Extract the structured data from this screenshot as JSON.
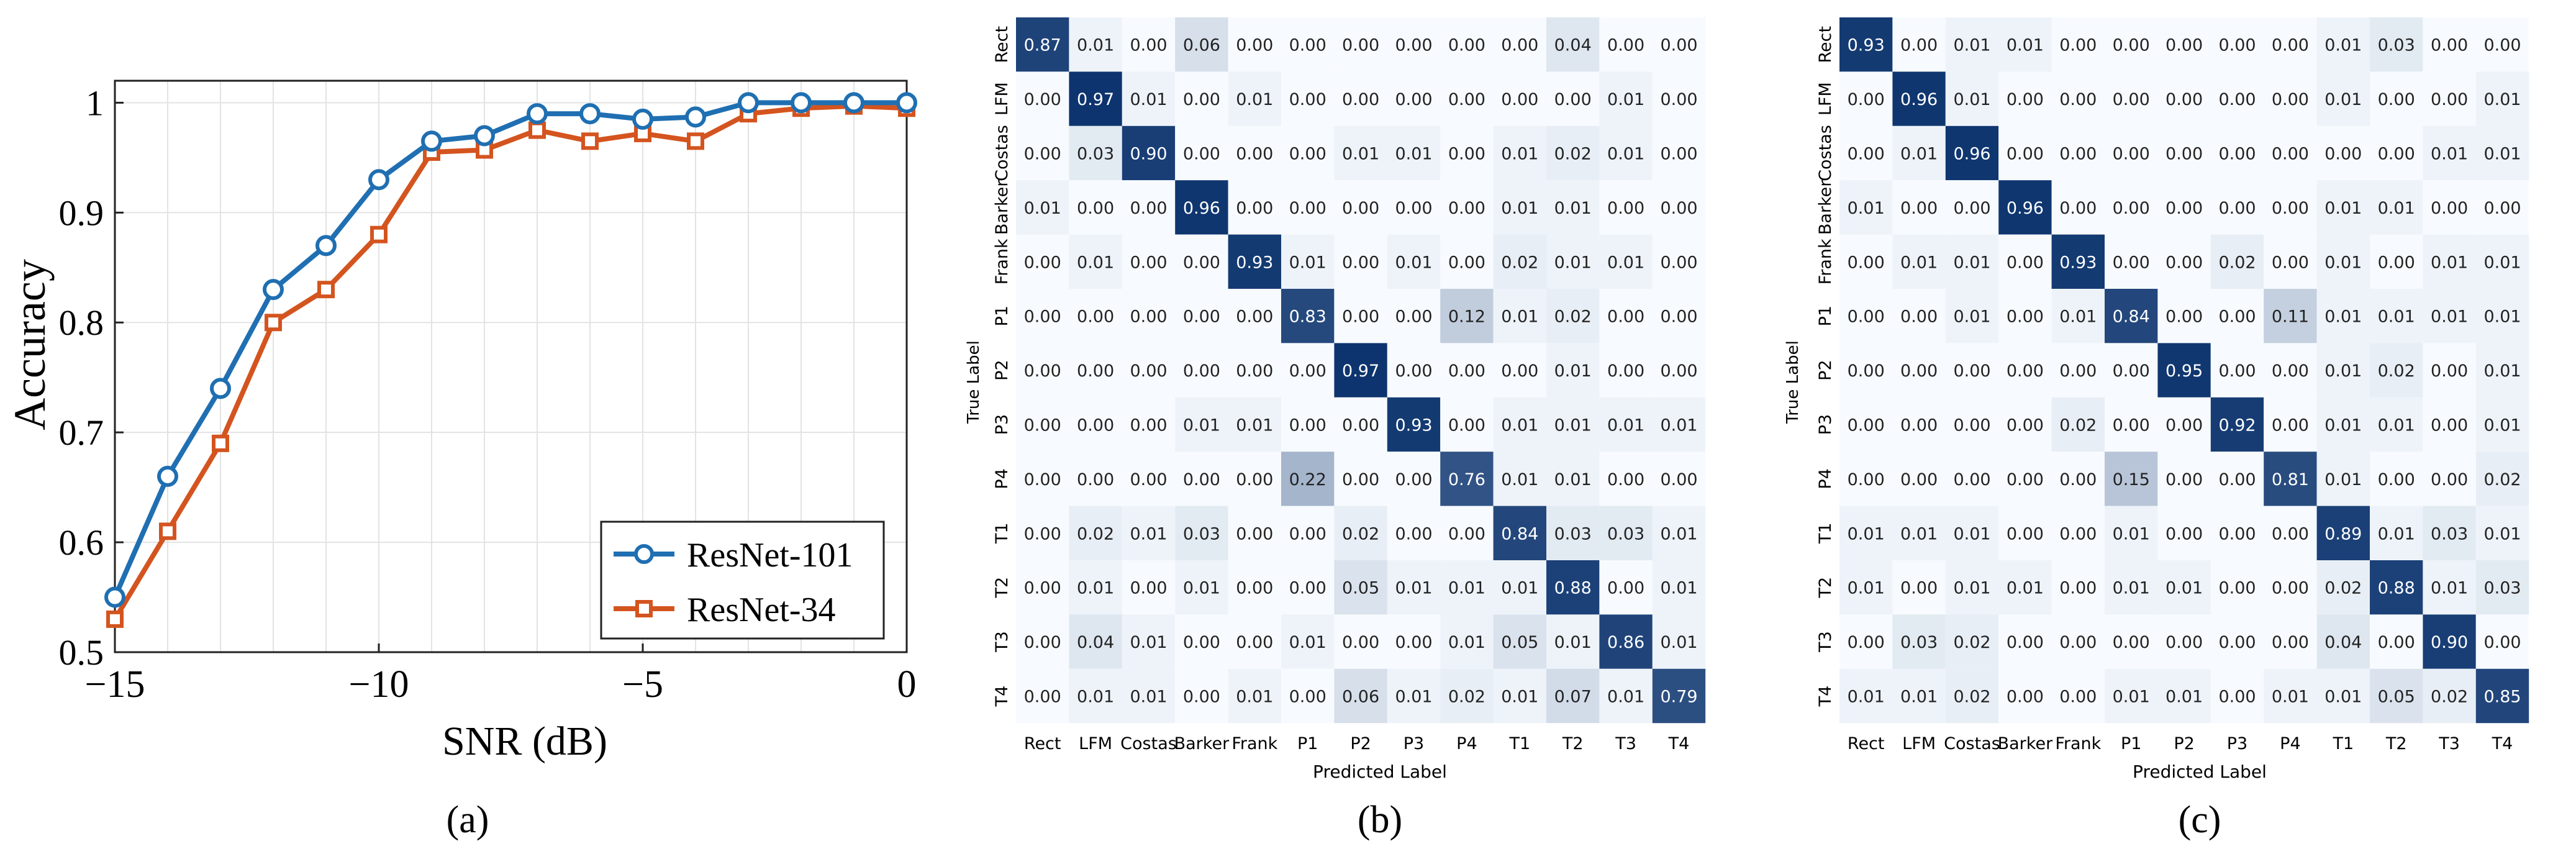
{
  "chart_data": [
    {
      "type": "line",
      "panel_label": "(a)",
      "xlabel": "SNR (dB)",
      "ylabel": "Accuracy",
      "xlim": [
        -15,
        0
      ],
      "ylim": [
        0.5,
        1.02
      ],
      "xticks": [
        -15,
        -10,
        -5,
        0
      ],
      "xtick_labels": [
        "−15",
        "−10",
        "−5",
        "0"
      ],
      "yticks": [
        0.5,
        0.6,
        0.7,
        0.8,
        0.9,
        1.0
      ],
      "ytick_labels": [
        "0.5",
        "0.6",
        "0.7",
        "0.8",
        "0.9",
        "1"
      ],
      "grid": true,
      "legend_position": "bottom-right",
      "x": [
        -15,
        -14,
        -13,
        -12,
        -11,
        -10,
        -9,
        -8,
        -7,
        -6,
        -5,
        -4,
        -3,
        -2,
        -1,
        0
      ],
      "series": [
        {
          "name": "ResNet-101",
          "color": "#1f6fb2",
          "marker": "circle",
          "values": [
            0.55,
            0.66,
            0.74,
            0.83,
            0.87,
            0.93,
            0.965,
            0.97,
            0.99,
            0.99,
            0.985,
            0.987,
            1.0,
            1.0,
            1.0,
            1.0
          ]
        },
        {
          "name": "ResNet-34",
          "color": "#d4541f",
          "marker": "square",
          "values": [
            0.53,
            0.61,
            0.69,
            0.8,
            0.83,
            0.88,
            0.955,
            0.957,
            0.975,
            0.965,
            0.972,
            0.965,
            0.99,
            0.995,
            0.997,
            0.995
          ]
        }
      ]
    },
    {
      "type": "heatmap",
      "panel_label": "(b)",
      "xlabel": "Predicted Label",
      "ylabel": "True Label",
      "labels": [
        "Rect",
        "LFM",
        "Costas",
        "Barker",
        "Frank",
        "P1",
        "P2",
        "P3",
        "P4",
        "T1",
        "T2",
        "T3",
        "T4"
      ],
      "matrix": [
        [
          0.87,
          0.01,
          0.0,
          0.06,
          0.0,
          0.0,
          0.0,
          0.0,
          0.0,
          0.0,
          0.04,
          0.0,
          0.0
        ],
        [
          0.0,
          0.97,
          0.01,
          0.0,
          0.01,
          0.0,
          0.0,
          0.0,
          0.0,
          0.0,
          0.0,
          0.01,
          0.0
        ],
        [
          0.0,
          0.03,
          0.9,
          0.0,
          0.0,
          0.0,
          0.01,
          0.01,
          0.0,
          0.01,
          0.02,
          0.01,
          0.0
        ],
        [
          0.01,
          0.0,
          0.0,
          0.96,
          0.0,
          0.0,
          0.0,
          0.0,
          0.0,
          0.01,
          0.01,
          0.0,
          0.0
        ],
        [
          0.0,
          0.01,
          0.0,
          0.0,
          0.93,
          0.01,
          0.0,
          0.01,
          0.0,
          0.02,
          0.01,
          0.01,
          0.0
        ],
        [
          0.0,
          0.0,
          0.0,
          0.0,
          0.0,
          0.83,
          0.0,
          0.0,
          0.12,
          0.01,
          0.02,
          0.0,
          0.0
        ],
        [
          0.0,
          0.0,
          0.0,
          0.0,
          0.0,
          0.0,
          0.97,
          0.0,
          0.0,
          0.0,
          0.01,
          0.0,
          0.0
        ],
        [
          0.0,
          0.0,
          0.0,
          0.01,
          0.01,
          0.0,
          0.0,
          0.93,
          0.0,
          0.01,
          0.01,
          0.01,
          0.01
        ],
        [
          0.0,
          0.0,
          0.0,
          0.0,
          0.0,
          0.22,
          0.0,
          0.0,
          0.76,
          0.01,
          0.01,
          0.0,
          0.0
        ],
        [
          0.0,
          0.02,
          0.01,
          0.03,
          0.0,
          0.0,
          0.02,
          0.0,
          0.0,
          0.84,
          0.03,
          0.03,
          0.01
        ],
        [
          0.0,
          0.01,
          0.0,
          0.01,
          0.0,
          0.0,
          0.05,
          0.01,
          0.01,
          0.01,
          0.88,
          0.0,
          0.01
        ],
        [
          0.0,
          0.04,
          0.01,
          0.0,
          0.0,
          0.01,
          0.0,
          0.0,
          0.01,
          0.05,
          0.01,
          0.86,
          0.01
        ],
        [
          0.0,
          0.01,
          0.01,
          0.0,
          0.01,
          0.0,
          0.06,
          0.01,
          0.02,
          0.01,
          0.07,
          0.01,
          0.79
        ]
      ]
    },
    {
      "type": "heatmap",
      "panel_label": "(c)",
      "xlabel": "Predicted Label",
      "ylabel": "True Label",
      "labels": [
        "Rect",
        "LFM",
        "Costas",
        "Barker",
        "Frank",
        "P1",
        "P2",
        "P3",
        "P4",
        "T1",
        "T2",
        "T3",
        "T4"
      ],
      "matrix": [
        [
          0.93,
          0.0,
          0.01,
          0.01,
          0.0,
          0.0,
          0.0,
          0.0,
          0.0,
          0.01,
          0.03,
          0.0,
          0.0
        ],
        [
          0.0,
          0.96,
          0.01,
          0.0,
          0.0,
          0.0,
          0.0,
          0.0,
          0.0,
          0.01,
          0.0,
          0.0,
          0.01
        ],
        [
          0.0,
          0.01,
          0.96,
          0.0,
          0.0,
          0.0,
          0.0,
          0.0,
          0.0,
          0.0,
          0.0,
          0.01,
          0.01
        ],
        [
          0.01,
          0.0,
          0.0,
          0.96,
          0.0,
          0.0,
          0.0,
          0.0,
          0.0,
          0.01,
          0.01,
          0.0,
          0.0
        ],
        [
          0.0,
          0.01,
          0.01,
          0.0,
          0.93,
          0.0,
          0.0,
          0.02,
          0.0,
          0.01,
          0.0,
          0.01,
          0.01
        ],
        [
          0.0,
          0.0,
          0.01,
          0.0,
          0.01,
          0.84,
          0.0,
          0.0,
          0.11,
          0.01,
          0.01,
          0.01,
          0.01
        ],
        [
          0.0,
          0.0,
          0.0,
          0.0,
          0.0,
          0.0,
          0.95,
          0.0,
          0.0,
          0.01,
          0.02,
          0.0,
          0.01
        ],
        [
          0.0,
          0.0,
          0.0,
          0.0,
          0.02,
          0.0,
          0.0,
          0.92,
          0.0,
          0.01,
          0.01,
          0.0,
          0.01
        ],
        [
          0.0,
          0.0,
          0.0,
          0.0,
          0.0,
          0.15,
          0.0,
          0.0,
          0.81,
          0.01,
          0.0,
          0.0,
          0.02
        ],
        [
          0.01,
          0.01,
          0.01,
          0.0,
          0.0,
          0.01,
          0.0,
          0.0,
          0.0,
          0.89,
          0.01,
          0.03,
          0.01
        ],
        [
          0.01,
          0.0,
          0.01,
          0.01,
          0.0,
          0.01,
          0.01,
          0.0,
          0.0,
          0.02,
          0.88,
          0.01,
          0.03
        ],
        [
          0.0,
          0.03,
          0.02,
          0.0,
          0.0,
          0.0,
          0.0,
          0.0,
          0.0,
          0.04,
          0.0,
          0.9,
          0.0
        ],
        [
          0.01,
          0.01,
          0.02,
          0.0,
          0.0,
          0.01,
          0.01,
          0.0,
          0.01,
          0.01,
          0.05,
          0.02,
          0.85
        ]
      ]
    }
  ]
}
